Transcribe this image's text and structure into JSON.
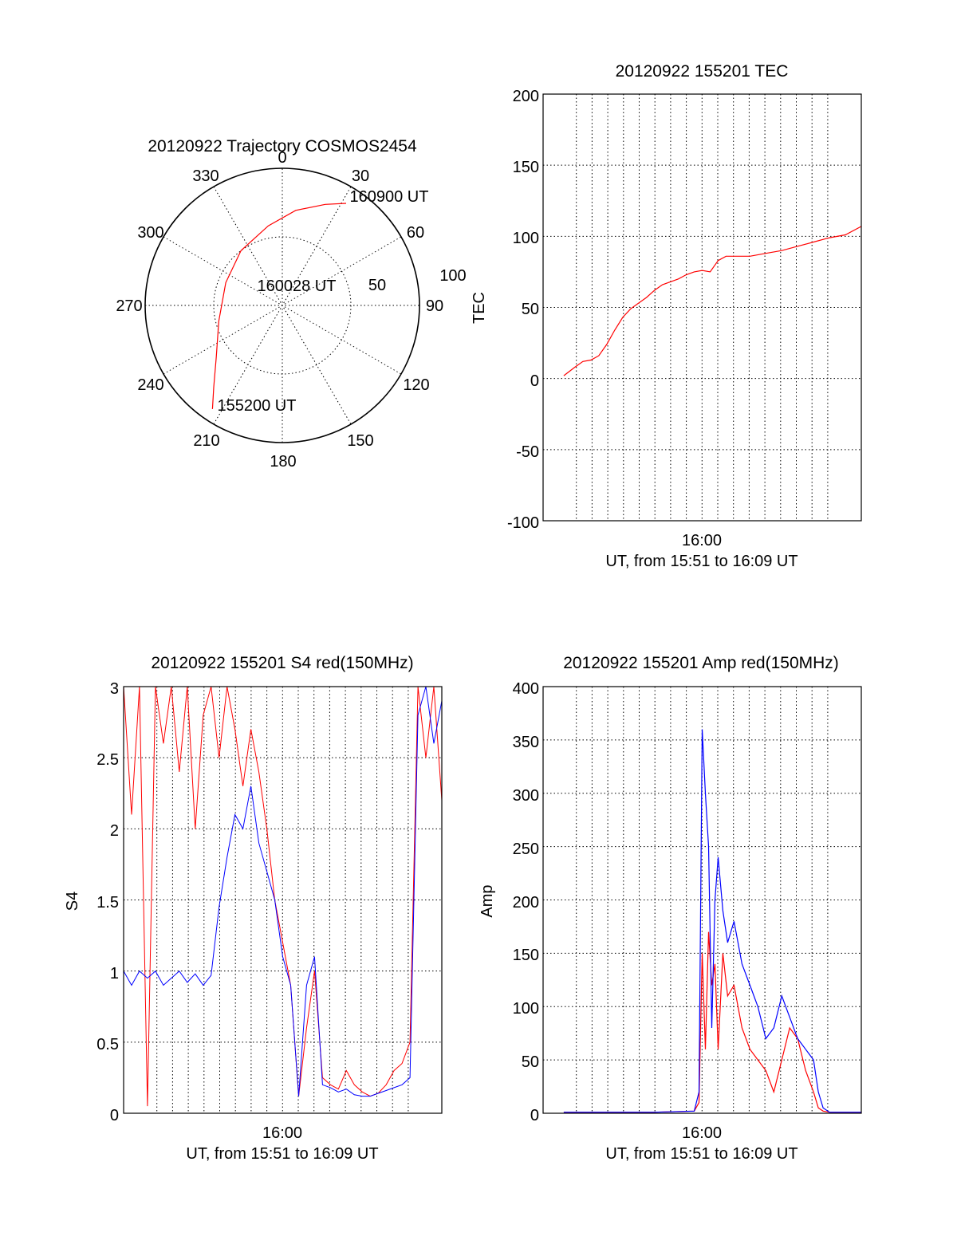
{
  "chart_data": [
    {
      "type": "polar",
      "id": "trajectory",
      "title": "20120922 Trajectory COSMOS2454",
      "azimuth_labels": [
        "0",
        "30",
        "60",
        "90",
        "120",
        "150",
        "180",
        "210",
        "240",
        "270",
        "300",
        "330"
      ],
      "radial_labels": [
        "50",
        "100"
      ],
      "rlim": [
        0,
        90
      ],
      "track": {
        "color": "#ff0000",
        "points": [
          {
            "az": 214,
            "zen": 82
          },
          {
            "az": 220,
            "zen": 70
          },
          {
            "az": 232,
            "zen": 55
          },
          {
            "az": 256,
            "zen": 43
          },
          {
            "az": 292,
            "zen": 40
          },
          {
            "az": 323,
            "zen": 45
          },
          {
            "az": 350,
            "zen": 53
          },
          {
            "az": 8,
            "zen": 63
          },
          {
            "az": 23,
            "zen": 72
          },
          {
            "az": 32,
            "zen": 79
          }
        ]
      },
      "annotations": [
        {
          "text": "160900 UT",
          "az": 36,
          "zen": 79
        },
        {
          "text": "160028 UT",
          "az": 330,
          "zen": 3
        },
        {
          "text": "155200 UT",
          "az": 218,
          "zen": 68
        }
      ]
    },
    {
      "type": "line",
      "id": "tec",
      "title": "20120922 155201 TEC",
      "ylabel": "TEC",
      "xlabel": "UT, from 15:51 to 16:09 UT",
      "xticklabels": [
        "16:00"
      ],
      "yticklabels": [
        "-100",
        "-50",
        "0",
        "50",
        "100",
        "150",
        "200"
      ],
      "ylim": [
        -100,
        200
      ],
      "grid": true,
      "series": [
        {
          "color": "#ff0000",
          "x": [
            1.3,
            2.0,
            2.5,
            3.0,
            3.5,
            4.0,
            4.5,
            5.0,
            5.5,
            6.0,
            6.5,
            7.0,
            7.5,
            8.0,
            8.5,
            9.0,
            9.5,
            10.0,
            10.5,
            11.0,
            11.5,
            12.0,
            13.0,
            14.0,
            15.0,
            16.0,
            17.0,
            18.0,
            19.0,
            20.0
          ],
          "y": [
            2,
            8,
            12,
            13,
            16,
            24,
            34,
            43,
            49,
            53,
            57,
            62,
            66,
            68,
            70,
            73,
            75,
            76,
            75,
            83,
            86,
            86,
            86,
            88,
            90,
            93,
            96,
            99,
            101,
            107
          ]
        }
      ]
    },
    {
      "type": "line",
      "id": "s4",
      "title": "20120922 155201 S4 red(150MHz)",
      "ylabel": "S4",
      "xlabel": "UT, from 15:51 to 16:09 UT",
      "xticklabels": [
        "16:00"
      ],
      "yticklabels": [
        "0",
        "0.5",
        "1",
        "1.5",
        "2",
        "2.5",
        "3"
      ],
      "ylim": [
        0,
        3
      ],
      "grid": true,
      "series": [
        {
          "color": "#ff0000",
          "x": [
            0.0,
            0.5,
            1.0,
            1.5,
            2.0,
            2.5,
            3.0,
            3.5,
            4.0,
            4.5,
            5.0,
            5.5,
            6.0,
            6.5,
            7.0,
            7.5,
            8.0,
            8.5,
            9.0,
            9.5,
            10.0,
            10.5,
            11.0,
            11.5,
            12.0,
            12.5,
            13.0,
            13.5,
            14.0,
            14.5,
            15.0,
            15.5,
            16.0,
            16.5,
            17.0,
            17.5,
            18.0,
            18.5,
            19.0,
            19.5,
            20.0
          ],
          "y": [
            3.0,
            2.1,
            3.0,
            0.05,
            3.0,
            2.6,
            3.0,
            2.4,
            3.0,
            2.0,
            2.8,
            3.0,
            2.5,
            3.0,
            2.7,
            2.3,
            2.7,
            2.4,
            2.0,
            1.5,
            1.2,
            0.9,
            0.12,
            0.6,
            1.0,
            0.25,
            0.2,
            0.17,
            0.3,
            0.2,
            0.15,
            0.12,
            0.14,
            0.2,
            0.3,
            0.35,
            0.5,
            3.0,
            2.5,
            3.0,
            2.2
          ]
        },
        {
          "color": "#0000ff",
          "x": [
            0.0,
            0.5,
            1.0,
            1.5,
            2.0,
            2.5,
            3.0,
            3.5,
            4.0,
            4.5,
            5.0,
            5.5,
            6.0,
            6.5,
            7.0,
            7.5,
            8.0,
            8.5,
            9.0,
            9.5,
            10.0,
            10.5,
            11.0,
            11.5,
            12.0,
            12.5,
            13.0,
            13.5,
            14.0,
            14.5,
            15.0,
            15.5,
            16.0,
            16.5,
            17.0,
            17.5,
            18.0,
            18.5,
            19.0,
            19.5,
            20.0
          ],
          "y": [
            1.0,
            0.9,
            1.0,
            0.95,
            1.0,
            0.9,
            0.95,
            1.0,
            0.92,
            0.98,
            0.9,
            0.97,
            1.45,
            1.8,
            2.1,
            2.0,
            2.3,
            1.9,
            1.7,
            1.5,
            1.1,
            0.9,
            0.12,
            0.9,
            1.1,
            0.2,
            0.18,
            0.15,
            0.17,
            0.13,
            0.12,
            0.12,
            0.14,
            0.16,
            0.18,
            0.2,
            0.25,
            2.8,
            3.0,
            2.6,
            2.9
          ]
        }
      ]
    },
    {
      "type": "line",
      "id": "amp",
      "title": "20120922 155201 Amp red(150MHz)",
      "ylabel": "Amp",
      "xlabel": "UT, from 15:51 to 16:09 UT",
      "xticklabels": [
        "16:00"
      ],
      "yticklabels": [
        "0",
        "50",
        "100",
        "150",
        "200",
        "250",
        "300",
        "350",
        "400"
      ],
      "ylim": [
        0,
        400
      ],
      "grid": true,
      "series": [
        {
          "color": "#ff0000",
          "x": [
            1.3,
            4.0,
            7.0,
            9.5,
            9.8,
            10.0,
            10.2,
            10.4,
            10.6,
            10.8,
            11.0,
            11.3,
            11.6,
            12.0,
            12.5,
            13.0,
            13.5,
            14.0,
            14.5,
            15.0,
            15.5,
            16.0,
            16.5,
            17.0,
            17.3,
            17.6,
            18.0,
            20.0
          ],
          "y": [
            1,
            1,
            1,
            2,
            10,
            150,
            60,
            170,
            120,
            140,
            60,
            150,
            110,
            120,
            80,
            60,
            50,
            40,
            20,
            50,
            80,
            70,
            40,
            20,
            5,
            2,
            1,
            1
          ]
        },
        {
          "color": "#0000ff",
          "x": [
            1.3,
            4.0,
            7.0,
            9.5,
            9.8,
            10.0,
            10.2,
            10.4,
            10.6,
            10.8,
            11.0,
            11.3,
            11.6,
            12.0,
            12.5,
            13.0,
            13.5,
            14.0,
            14.5,
            15.0,
            15.5,
            16.0,
            16.5,
            17.0,
            17.3,
            17.6,
            18.0,
            20.0
          ],
          "y": [
            1,
            1,
            1,
            2,
            20,
            360,
            300,
            250,
            80,
            200,
            240,
            190,
            160,
            180,
            140,
            120,
            100,
            70,
            80,
            110,
            90,
            70,
            60,
            50,
            20,
            5,
            1,
            1
          ]
        }
      ]
    }
  ]
}
